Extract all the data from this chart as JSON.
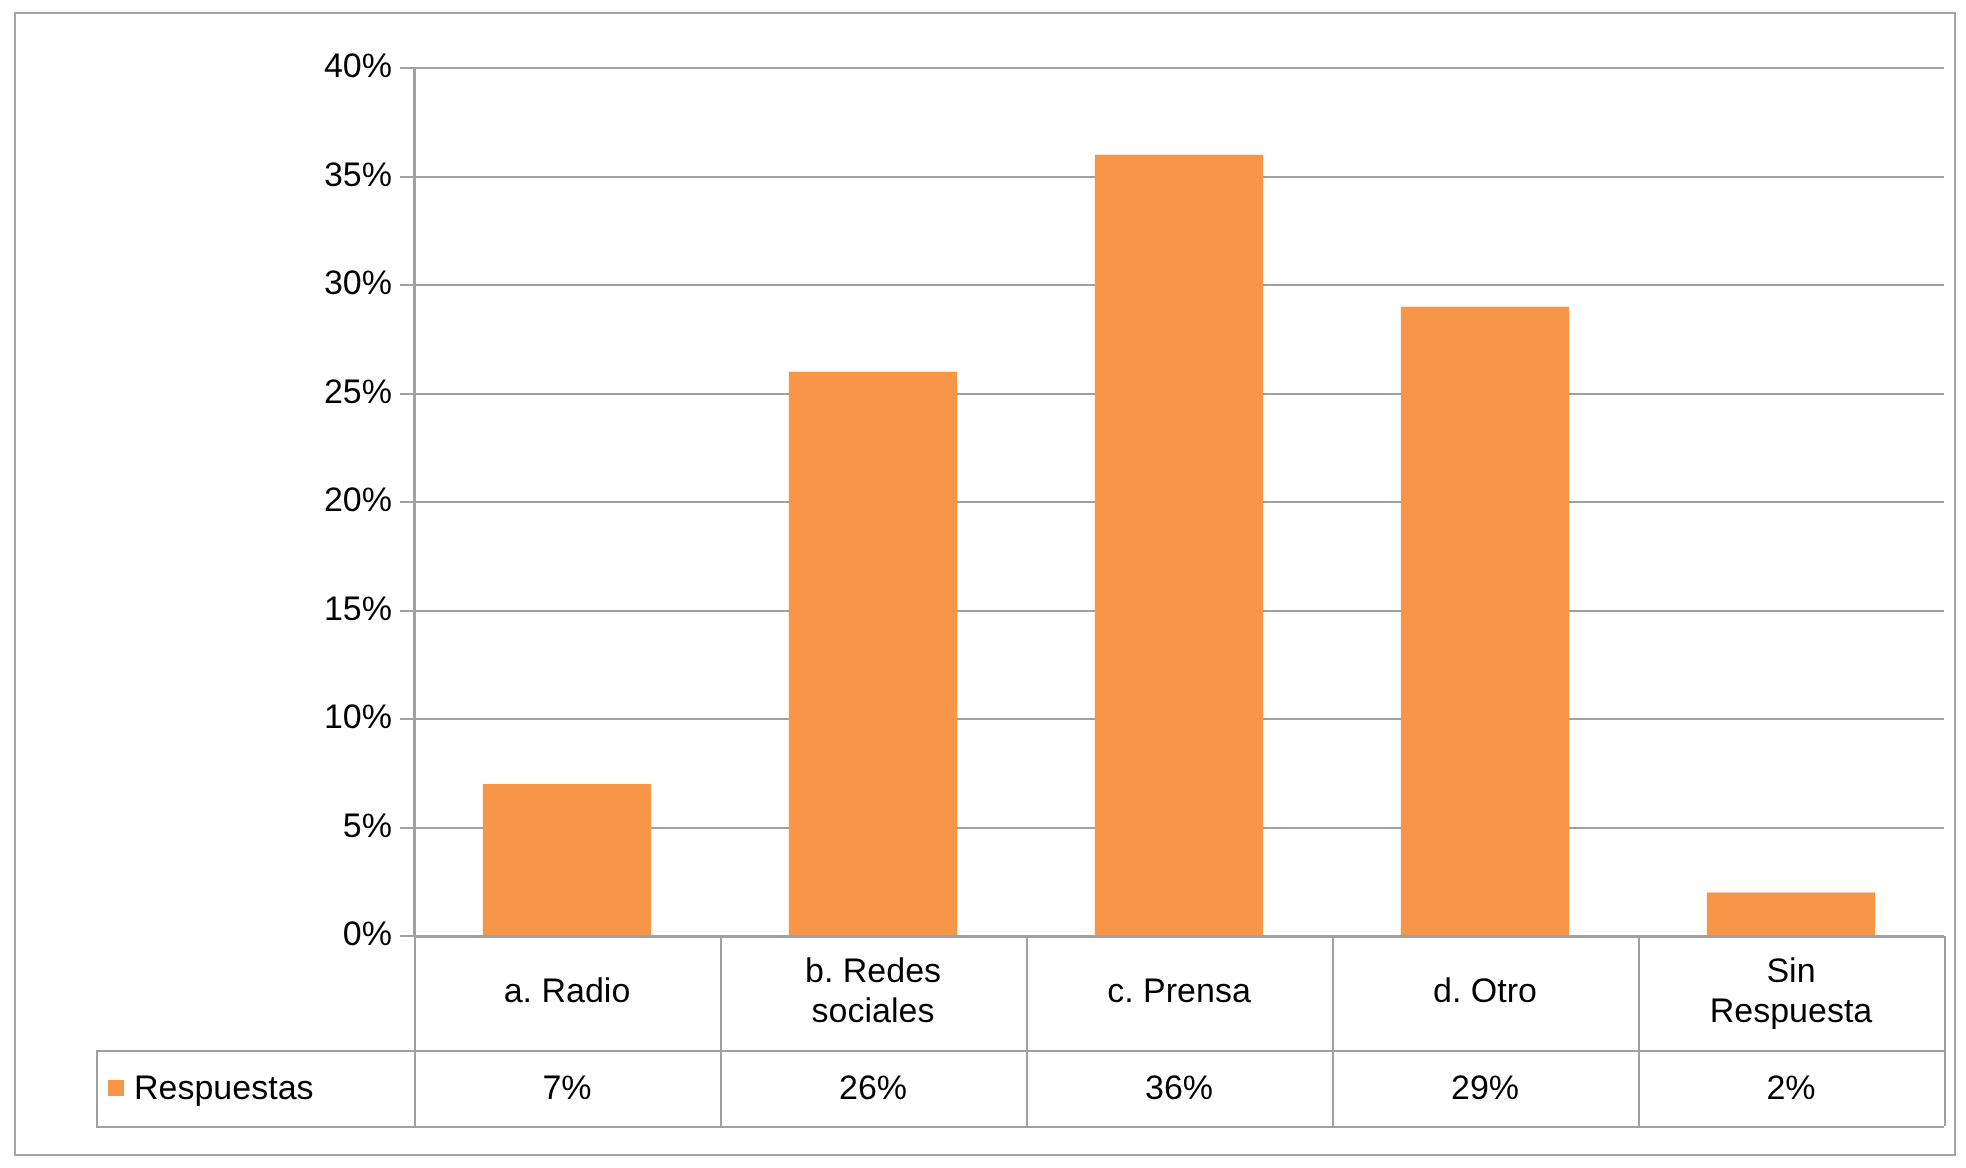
{
  "chart_data": {
    "type": "bar",
    "categories": [
      "a. Radio",
      "b. Redes sociales",
      "c. Prensa",
      "d. Otro",
      "Sin Respuesta"
    ],
    "series": [
      {
        "name": "Respuestas",
        "color": "#f79646",
        "values": [
          7,
          26,
          36,
          29,
          2
        ],
        "value_labels": [
          "7%",
          "26%",
          "36%",
          "29%",
          "2%"
        ]
      }
    ],
    "ylim": [
      0,
      40
    ],
    "yticks": [
      {
        "value": 0,
        "label": "0%"
      },
      {
        "value": 5,
        "label": "5%"
      },
      {
        "value": 10,
        "label": "10%"
      },
      {
        "value": 15,
        "label": "15%"
      },
      {
        "value": 20,
        "label": "20%"
      },
      {
        "value": 25,
        "label": "25%"
      },
      {
        "value": 30,
        "label": "30%"
      },
      {
        "value": 35,
        "label": "35%"
      },
      {
        "value": 40,
        "label": "40%"
      }
    ],
    "grid": "y",
    "legend": "bottom left"
  }
}
